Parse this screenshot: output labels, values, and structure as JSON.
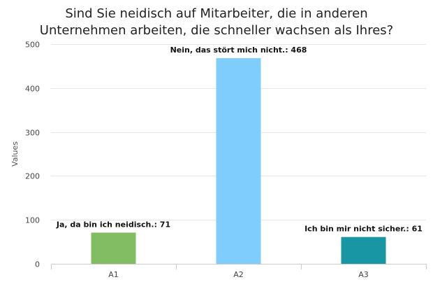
{
  "chart_data": {
    "type": "bar",
    "title_lines": [
      "Sind Sie neidisch auf Mitarbeiter, die in anderen",
      "Unternehmen arbeiten, die schneller wachsen als Ihres?"
    ],
    "ylabel": "Values",
    "xlabel": "",
    "ylim": [
      0,
      500
    ],
    "yticks": [
      0,
      100,
      200,
      300,
      400,
      500
    ],
    "categories": [
      "A1",
      "A2",
      "A3"
    ],
    "values": [
      71,
      468,
      61
    ],
    "data_labels": [
      "Ja, da bin ich neidisch.: 71",
      "Nein, das stört mich nicht.: 468",
      "Ich bin mir nicht sicher.: 61"
    ],
    "colors": [
      "#82bd63",
      "#7fcdfc",
      "#1896a3"
    ],
    "grid": true,
    "legend": "none"
  }
}
